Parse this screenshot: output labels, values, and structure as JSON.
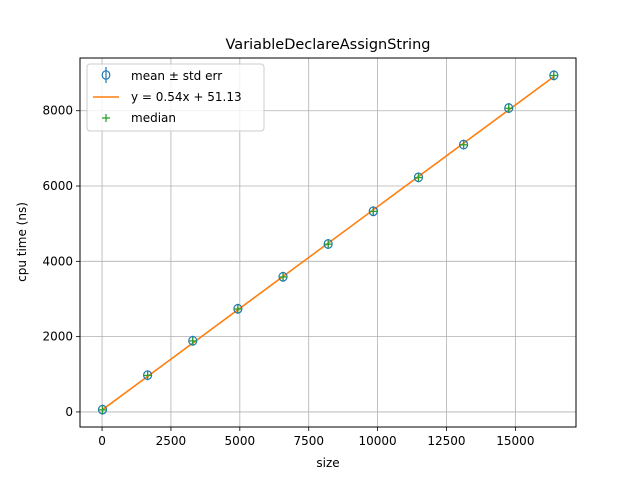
{
  "chart_data": {
    "type": "scatter",
    "title": "VariableDeclareAssignString",
    "xlabel": "size",
    "ylabel": "cpu time (ns)",
    "xlim": [
      -800,
      17200
    ],
    "ylim": [
      -400,
      9400
    ],
    "x_ticks": [
      0,
      2500,
      5000,
      7500,
      10000,
      12500,
      15000
    ],
    "x_tick_labels": [
      "0",
      "2500",
      "5000",
      "7500",
      "10000",
      "12500",
      "15000"
    ],
    "y_ticks": [
      0,
      2000,
      4000,
      6000,
      8000
    ],
    "y_tick_labels": [
      "0",
      "2000",
      "4000",
      "6000",
      "8000"
    ],
    "grid": true,
    "legend_position": "top-left",
    "legend": {
      "mean": "mean ± std err",
      "fit": "y = 0.54x + 51.13",
      "median": "median"
    },
    "series": [
      {
        "name": "mean ± std err",
        "kind": "errorbar",
        "color": "#1f77b4",
        "x": [
          16,
          1654,
          3292,
          4930,
          6568,
          8206,
          9844,
          11482,
          13120,
          14758,
          16396
        ],
        "y": [
          60,
          975,
          1890,
          2740,
          3590,
          4460,
          5330,
          6230,
          7100,
          8070,
          8940
        ]
      },
      {
        "name": "y = 0.54x + 51.13",
        "kind": "line",
        "color": "#ff7f0e",
        "slope": 0.54,
        "intercept": 51.13,
        "x_range": [
          16,
          16396
        ]
      },
      {
        "name": "median",
        "kind": "marker",
        "color": "#2ca02c",
        "x": [
          16,
          1654,
          3292,
          4930,
          6568,
          8206,
          9844,
          11482,
          13120,
          14758,
          16396
        ],
        "y": [
          55,
          970,
          1885,
          2735,
          3585,
          4455,
          5325,
          6225,
          7095,
          8065,
          8935
        ]
      }
    ]
  }
}
